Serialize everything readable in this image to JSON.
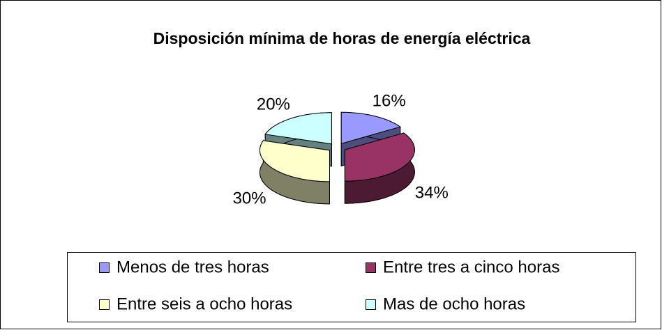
{
  "chart_data": {
    "type": "pie3d",
    "title": "Disposición mínima de horas de energía eléctrica",
    "categories": [
      "Menos de tres horas",
      "Entre tres a cinco horas",
      "Entre seis a ocho horas",
      "Mas de ocho horas"
    ],
    "values": [
      16,
      34,
      30,
      20
    ],
    "value_labels": [
      "16%",
      "34%",
      "30%",
      "20%"
    ],
    "colors": [
      "#9999ff",
      "#993366",
      "#ffffcc",
      "#ccffff"
    ],
    "legend": "bottom"
  }
}
